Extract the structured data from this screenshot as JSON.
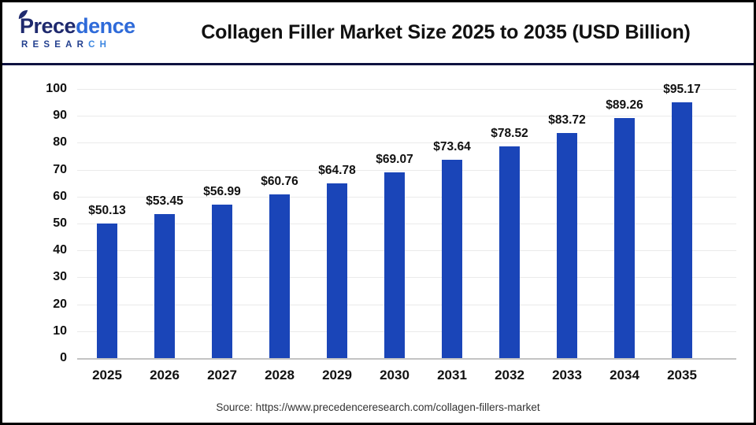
{
  "header": {
    "logo": {
      "name_part1": "Prece",
      "name_part2": "dence",
      "sub_part1": "RESEAR",
      "sub_part2": "CH"
    },
    "title": "Collagen Filler Market Size 2025 to 2035 (USD Billion)"
  },
  "chart_data": {
    "type": "bar",
    "title": "Collagen Filler Market Size 2025 to 2035 (USD Billion)",
    "categories": [
      "2025",
      "2026",
      "2027",
      "2028",
      "2029",
      "2030",
      "2031",
      "2032",
      "2033",
      "2034",
      "2035"
    ],
    "values": [
      50.13,
      53.45,
      56.99,
      60.76,
      64.78,
      69.07,
      73.64,
      78.52,
      83.72,
      89.26,
      95.17
    ],
    "value_labels": [
      "$50.13",
      "$53.45",
      "$56.99",
      "$60.76",
      "$64.78",
      "$69.07",
      "$73.64",
      "$78.52",
      "$83.72",
      "$89.26",
      "$95.17"
    ],
    "xlabel": "",
    "ylabel": "",
    "ylim": [
      0,
      100
    ],
    "ytick_step": 10,
    "grid": "horizontal-only",
    "legend": "none"
  },
  "footer": {
    "source": "Source: https://www.precedenceresearch.com/collagen-fillers-market"
  },
  "colors": {
    "bar": "#1a45b8",
    "divider": "#0e1240",
    "gridline": "#eaeaea",
    "axis_line": "#c4c4c4",
    "logo_navy": "#1f2a6e",
    "logo_blue": "#2f6bd9",
    "title_text": "#111111"
  }
}
